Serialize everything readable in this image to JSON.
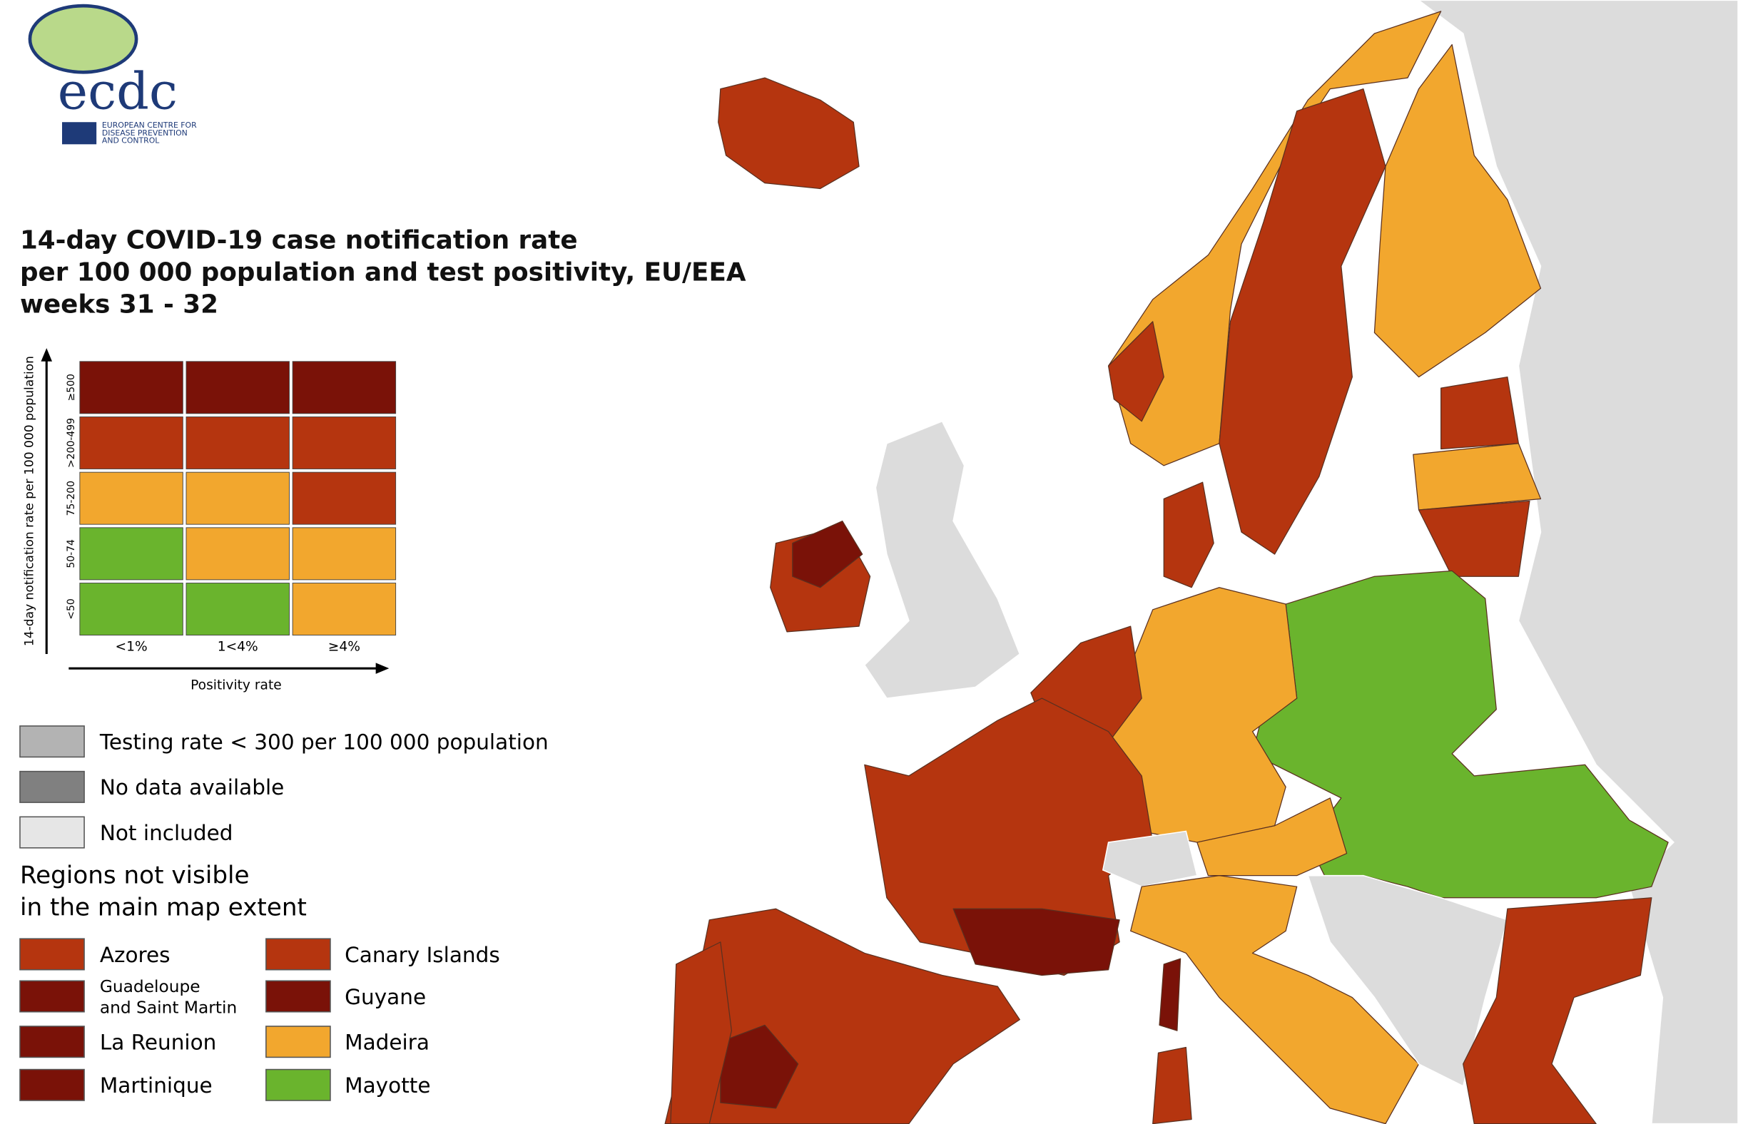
{
  "logo": {
    "acronym": "ecdc",
    "org_lines": [
      "EUROPEAN CENTRE FOR",
      "DISEASE PREVENTION",
      "AND CONTROL"
    ]
  },
  "title": [
    "14-day COVID-19 case notification rate",
    "per 100 000 population and test positivity, EU/EEA",
    "weeks 31 - 32"
  ],
  "matrix": {
    "y_axis_label": "14-day notification rate per 100 000 population",
    "rows": [
      "≥500",
      ">200-499",
      "75-200",
      "50-74",
      "<50"
    ],
    "columns": [
      "<1%",
      "1<4%",
      "≥4%"
    ],
    "x_axis_label": "Positivity rate",
    "cells": [
      [
        "#7a1208",
        "#7a1208",
        "#7a1208"
      ],
      [
        "#b5350f",
        "#b5350f",
        "#b5350f"
      ],
      [
        "#f2a72e",
        "#f2a72e",
        "#b5350f"
      ],
      [
        "#6ab42d",
        "#f2a72e",
        "#f2a72e"
      ],
      [
        "#6ab42d",
        "#6ab42d",
        "#f2a72e"
      ]
    ]
  },
  "legend": [
    {
      "label": "Testing rate < 300 per 100 000 population",
      "color": "#b3b3b3"
    },
    {
      "label": "No data available",
      "color": "#808080"
    },
    {
      "label": "Not included",
      "color": "#e6e6e6"
    }
  ],
  "regions_heading": [
    "Regions not visible",
    "in the main map extent"
  ],
  "regions": [
    {
      "lines": [
        "Azores"
      ],
      "color": "#b5350f"
    },
    {
      "lines": [
        "Guadeloupe",
        "and Saint Martin"
      ],
      "color": "#7a1208"
    },
    {
      "lines": [
        "La Reunion"
      ],
      "color": "#7a1208"
    },
    {
      "lines": [
        "Martinique"
      ],
      "color": "#7a1208"
    },
    {
      "lines": [
        "Canary Islands"
      ],
      "color": "#b5350f"
    },
    {
      "lines": [
        "Guyane"
      ],
      "color": "#7a1208"
    },
    {
      "lines": [
        "Madeira"
      ],
      "color": "#f2a72e"
    },
    {
      "lines": [
        "Mayotte"
      ],
      "color": "#6ab42d"
    }
  ]
}
